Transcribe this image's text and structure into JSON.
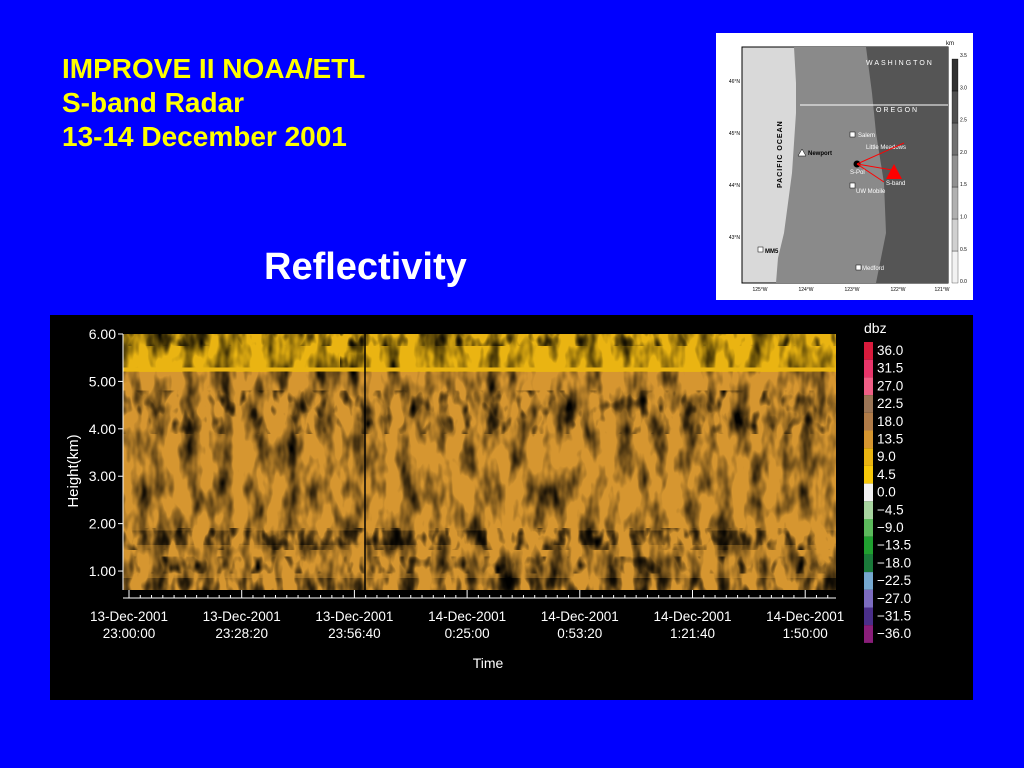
{
  "slide": {
    "title_lines": [
      "IMPROVE II NOAA/ETL",
      "S-band Radar",
      "13-14 December 2001"
    ],
    "subtitle": "Reflectivity"
  },
  "map": {
    "unit_label": "km",
    "scale_ticks": [
      "3.5",
      "3.0",
      "2.5",
      "2.0",
      "1.5",
      "1.0",
      "0.5",
      "0.0"
    ],
    "lat_labels": [
      "46°N",
      "45°N",
      "44°N",
      "43°N"
    ],
    "lon_labels": [
      "125°W",
      "124°W",
      "123°W",
      "122°W",
      "121°W"
    ],
    "region_labels": [
      "WASHINGTON",
      "OREGON",
      "PACIFIC OCEAN"
    ],
    "place_labels": [
      "Salem",
      "Little Meadows",
      "Newport",
      "S-Pol",
      "S-band",
      "UW Mobile",
      "MM5",
      "Medford"
    ],
    "colors": {
      "land": "#8a8a8a",
      "ocean": "#d9d9d9",
      "marker": "#ff0000"
    }
  },
  "chart_data": {
    "type": "heatmap",
    "ylabel": "Height(km)",
    "xlabel": "Time",
    "ylim": [
      0.6,
      6.0
    ],
    "y_ticks": [
      "6.00",
      "5.00",
      "4.00",
      "3.00",
      "2.00",
      "1.00"
    ],
    "y_tick_values": [
      6.0,
      5.0,
      4.0,
      3.0,
      2.0,
      1.0
    ],
    "x_ticks": [
      {
        "date": "13-Dec-2001",
        "time": "23:00:00"
      },
      {
        "date": "13-Dec-2001",
        "time": "23:28:20"
      },
      {
        "date": "13-Dec-2001",
        "time": "23:56:40"
      },
      {
        "date": "14-Dec-2001",
        "time": "0:25:00"
      },
      {
        "date": "14-Dec-2001",
        "time": "0:53:20"
      },
      {
        "date": "14-Dec-2001",
        "time": "1:21:40"
      },
      {
        "date": "14-Dec-2001",
        "time": "1:50:00"
      }
    ],
    "colorbar_title": "dbz",
    "colorbar": [
      {
        "label": "36.0",
        "color": "#d81b3c"
      },
      {
        "label": "31.5",
        "color": "#e8356a"
      },
      {
        "label": "27.0",
        "color": "#f05f86"
      },
      {
        "label": "22.5",
        "color": "#9b7556"
      },
      {
        "label": "18.0",
        "color": "#b07b48"
      },
      {
        "label": "13.5",
        "color": "#d69630"
      },
      {
        "label": "9.0",
        "color": "#eab412"
      },
      {
        "label": "4.5",
        "color": "#f7c80a"
      },
      {
        "label": "0.0",
        "color": "#f2f2f2"
      },
      {
        "label": "−4.5",
        "color": "#a8d5a0"
      },
      {
        "label": "−9.0",
        "color": "#5cba5c"
      },
      {
        "label": "−13.5",
        "color": "#20a030"
      },
      {
        "label": "−18.0",
        "color": "#1a7a3a"
      },
      {
        "label": "−22.5",
        "color": "#76a8d0"
      },
      {
        "label": "−27.0",
        "color": "#7c6cc0"
      },
      {
        "label": "−31.5",
        "color": "#4a2f8a"
      },
      {
        "label": "−36.0",
        "color": "#8a1e7a"
      }
    ]
  }
}
